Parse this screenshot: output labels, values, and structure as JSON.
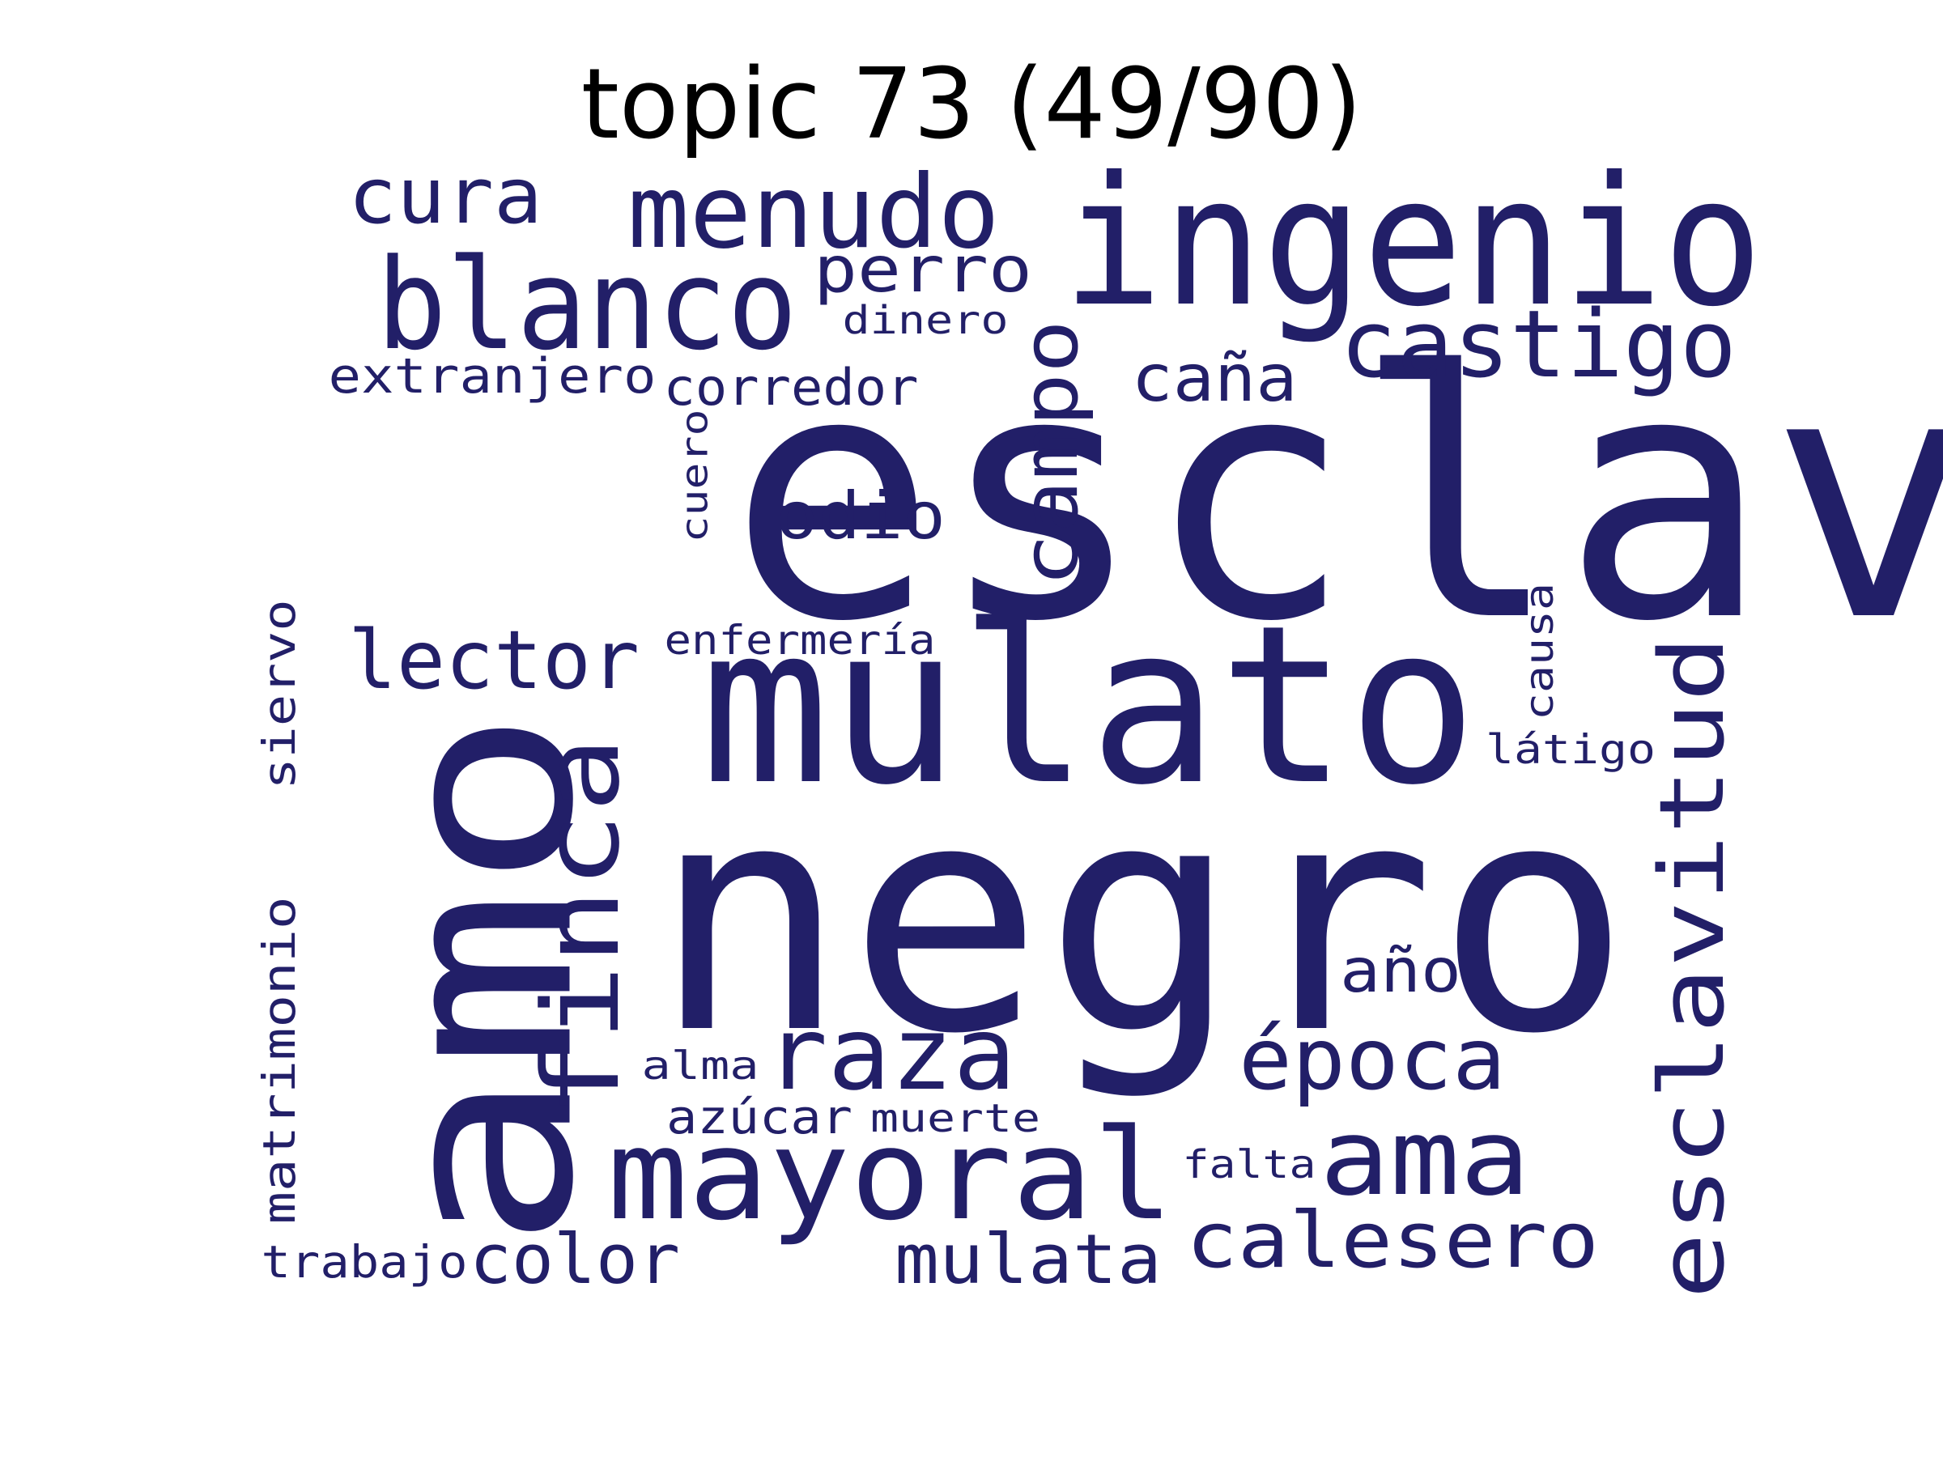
{
  "title": "topic 73 (49/90)",
  "word_color": "#221f68",
  "words": [
    {
      "text": "esclavo"
    },
    {
      "text": "negro"
    },
    {
      "text": "amo"
    },
    {
      "text": "mulato"
    },
    {
      "text": "ingenio"
    },
    {
      "text": "blanco"
    },
    {
      "text": "esclavitud"
    },
    {
      "text": "finca"
    },
    {
      "text": "mayoral"
    },
    {
      "text": "menudo"
    },
    {
      "text": "campo"
    },
    {
      "text": "castigo"
    },
    {
      "text": "raza"
    },
    {
      "text": "ama"
    },
    {
      "text": "época"
    },
    {
      "text": "lector"
    },
    {
      "text": "calesero"
    },
    {
      "text": "cura"
    },
    {
      "text": "mulata"
    },
    {
      "text": "color"
    },
    {
      "text": "odio"
    },
    {
      "text": "caña"
    },
    {
      "text": "perro"
    },
    {
      "text": "matrimonio"
    },
    {
      "text": "año"
    },
    {
      "text": "corredor"
    },
    {
      "text": "extranjero"
    },
    {
      "text": "siervo"
    },
    {
      "text": "azúcar"
    },
    {
      "text": "trabajo"
    },
    {
      "text": "enfermería"
    },
    {
      "text": "causa"
    },
    {
      "text": "látigo"
    },
    {
      "text": "cuero"
    },
    {
      "text": "dinero"
    },
    {
      "text": "alma"
    },
    {
      "text": "muerte"
    },
    {
      "text": "falta"
    }
  ]
}
